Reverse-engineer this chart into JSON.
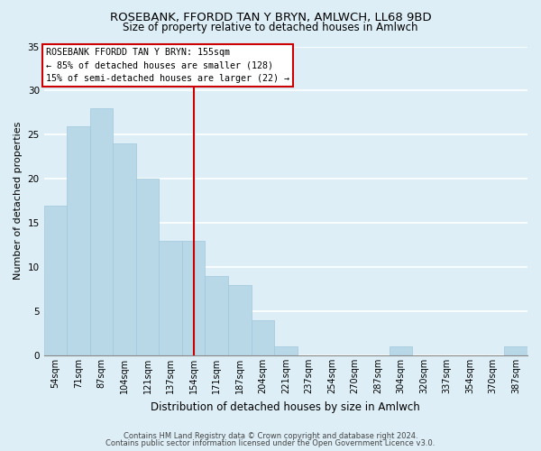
{
  "title": "ROSEBANK, FFORDD TAN Y BRYN, AMLWCH, LL68 9BD",
  "subtitle": "Size of property relative to detached houses in Amlwch",
  "xlabel": "Distribution of detached houses by size in Amlwch",
  "ylabel": "Number of detached properties",
  "bar_labels": [
    "54sqm",
    "71sqm",
    "87sqm",
    "104sqm",
    "121sqm",
    "137sqm",
    "154sqm",
    "171sqm",
    "187sqm",
    "204sqm",
    "221sqm",
    "237sqm",
    "254sqm",
    "270sqm",
    "287sqm",
    "304sqm",
    "320sqm",
    "337sqm",
    "354sqm",
    "370sqm",
    "387sqm"
  ],
  "bar_values": [
    17,
    26,
    28,
    24,
    20,
    13,
    13,
    9,
    8,
    4,
    1,
    0,
    0,
    0,
    0,
    1,
    0,
    0,
    0,
    0,
    1
  ],
  "bar_color": "#b8d8e8",
  "bar_edge_color": "#a0c8dc",
  "vline_color": "#cc0000",
  "annotation_title": "ROSEBANK FFORDD TAN Y BRYN: 155sqm",
  "annotation_line1": "← 85% of detached houses are smaller (128)",
  "annotation_line2": "15% of semi-detached houses are larger (22) →",
  "annotation_box_color": "#ffffff",
  "annotation_box_edge": "#cc0000",
  "ylim": [
    0,
    35
  ],
  "yticks": [
    0,
    5,
    10,
    15,
    20,
    25,
    30,
    35
  ],
  "footer1": "Contains HM Land Registry data © Crown copyright and database right 2024.",
  "footer2": "Contains public sector information licensed under the Open Government Licence v3.0.",
  "background_color": "#ddeef6",
  "plot_bg_color": "#ddeef6",
  "grid_color": "#ffffff",
  "title_fontsize": 9.5,
  "subtitle_fontsize": 8.5
}
